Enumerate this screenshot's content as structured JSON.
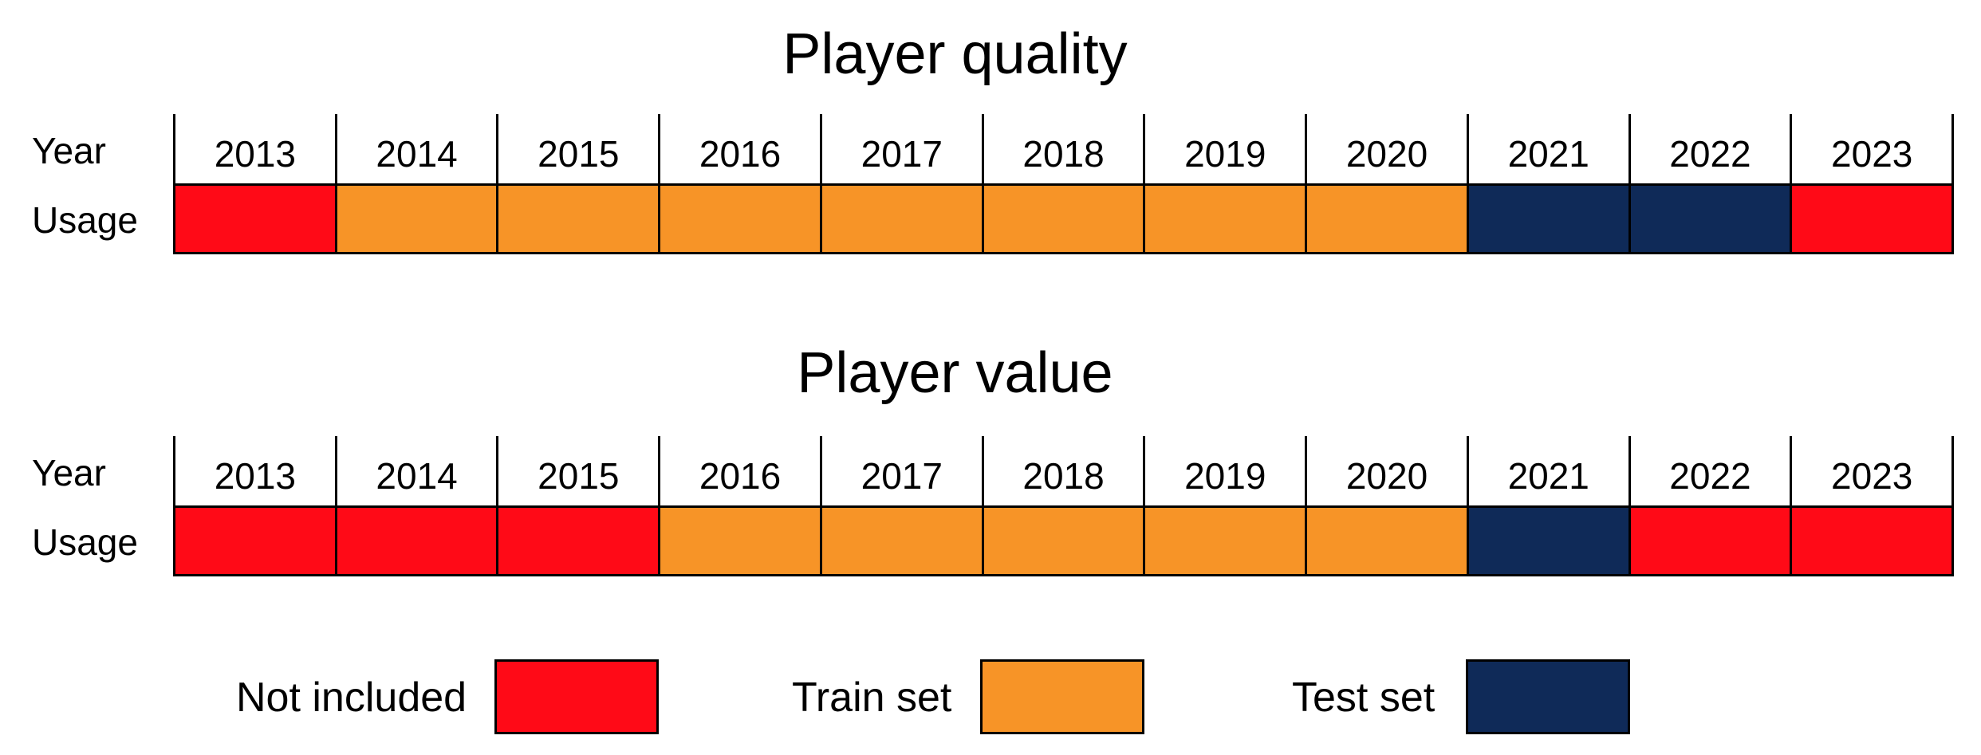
{
  "colors": {
    "not_included": "#ff0a17",
    "train": "#f79427",
    "test": "#0f2a58"
  },
  "row_labels": {
    "year": "Year",
    "usage": "Usage"
  },
  "panels": [
    {
      "title": "Player quality",
      "years": [
        "2013",
        "2014",
        "2015",
        "2016",
        "2017",
        "2018",
        "2019",
        "2020",
        "2021",
        "2022",
        "2023"
      ],
      "usage": [
        "not_included",
        "train",
        "train",
        "train",
        "train",
        "train",
        "train",
        "train",
        "test",
        "test",
        "not_included"
      ]
    },
    {
      "title": "Player value",
      "years": [
        "2013",
        "2014",
        "2015",
        "2016",
        "2017",
        "2018",
        "2019",
        "2020",
        "2021",
        "2022",
        "2023"
      ],
      "usage": [
        "not_included",
        "not_included",
        "not_included",
        "train",
        "train",
        "train",
        "train",
        "train",
        "test",
        "not_included",
        "not_included"
      ]
    }
  ],
  "legend": [
    {
      "key": "not_included",
      "label": "Not included"
    },
    {
      "key": "train",
      "label": "Train set"
    },
    {
      "key": "test",
      "label": "Test set"
    }
  ]
}
